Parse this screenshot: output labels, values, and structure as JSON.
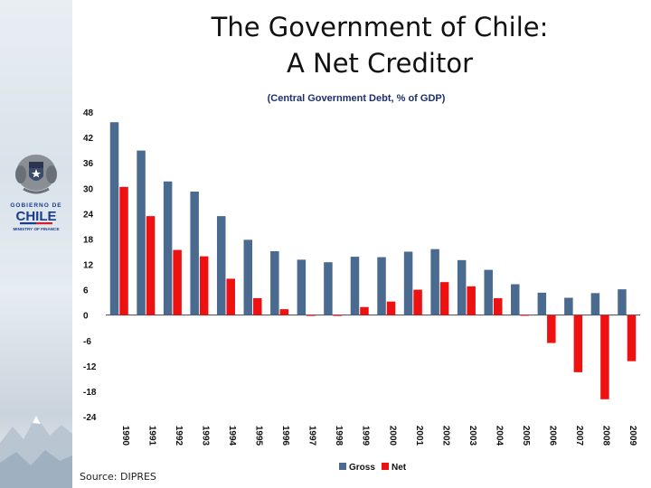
{
  "slide": {
    "title_line1": "The Government of Chile:",
    "title_line2": "A Net Creditor",
    "source": "Source: DIPRES"
  },
  "logo": {
    "line1": "GOBIERNO DE",
    "line2": "CHILE",
    "line3": "MINISTRY OF FINANCE"
  },
  "colors": {
    "gross": "#4a6b8f",
    "net": "#ee1111",
    "subtitle": "#1c2f6b",
    "logo_blue": "#1a3c8c",
    "logo_red": "#d0202a"
  },
  "chart_data": {
    "type": "bar",
    "title": "(Central Government Debt, % of GDP)",
    "xlabel": "",
    "ylabel": "",
    "ylim": [
      -24,
      48
    ],
    "yticks": [
      48,
      42,
      36,
      30,
      24,
      18,
      12,
      6,
      0,
      -6,
      -12,
      -18,
      -24
    ],
    "categories": [
      "1990",
      "1991",
      "1992",
      "1993",
      "1994",
      "1995",
      "1996",
      "1997",
      "1998",
      "1999",
      "2000",
      "2001",
      "2002",
      "2003",
      "2004",
      "2005",
      "2006",
      "2007",
      "2008",
      "2009"
    ],
    "series": [
      {
        "name": "Gross",
        "values": [
          45.6,
          38.9,
          31.6,
          29.2,
          23.4,
          17.8,
          15.1,
          13.1,
          12.5,
          13.8,
          13.7,
          15.0,
          15.6,
          13.0,
          10.7,
          7.3,
          5.3,
          4.1,
          5.2,
          6.1
        ]
      },
      {
        "name": "Net",
        "values": [
          30.3,
          23.4,
          15.4,
          13.9,
          8.6,
          4.0,
          1.4,
          -0.2,
          -0.2,
          1.9,
          3.2,
          6.0,
          7.8,
          6.8,
          4.0,
          0.0,
          -6.6,
          -13.5,
          -19.9,
          -10.9
        ]
      }
    ],
    "legend_position": "bottom"
  }
}
